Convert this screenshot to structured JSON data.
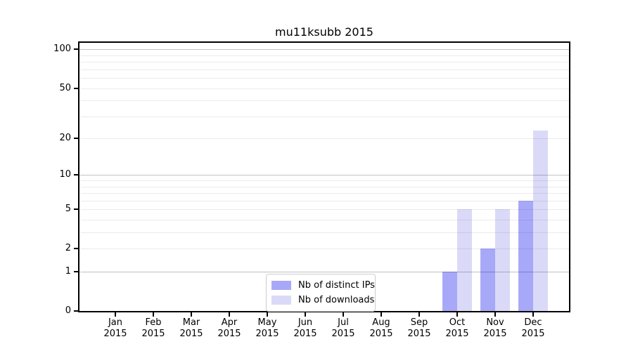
{
  "title": "mu11ksubb 2015",
  "chart_data": {
    "type": "bar",
    "title": "mu11ksubb 2015",
    "categories": [
      "Jan",
      "Feb",
      "Mar",
      "Apr",
      "May",
      "Jun",
      "Jul",
      "Aug",
      "Sep",
      "Oct",
      "Nov",
      "Dec"
    ],
    "x_year": "2015",
    "series": [
      {
        "name": "Nb of distinct IPs",
        "color": "#a8a8f8",
        "values": [
          0,
          0,
          0,
          0,
          0,
          0,
          0,
          0,
          0,
          1,
          2,
          6
        ]
      },
      {
        "name": "Nb of downloads",
        "color": "#dadaf8",
        "values": [
          0,
          0,
          0,
          0,
          0,
          0,
          0,
          0,
          0,
          5,
          5,
          23
        ]
      }
    ],
    "yscale": "log1p",
    "ylim": [
      0,
      112.4
    ],
    "yticks": [
      0,
      1,
      2,
      5,
      10,
      20,
      50,
      100
    ],
    "grid_major_ticks": [
      1,
      10,
      100
    ],
    "grid_minor_ticks": [
      2,
      3,
      4,
      5,
      6,
      7,
      8,
      9,
      20,
      30,
      40,
      50,
      60,
      70,
      80,
      90
    ],
    "legend": {
      "position": "lower center",
      "labels": [
        "Nb of distinct IPs",
        "Nb of downloads"
      ]
    },
    "colors": {
      "bar_distinct_ips": "#a8a8f8",
      "bar_downloads": "#dadaf8",
      "grid_major": "rgba(0,0,0,0.24)",
      "grid_minor": "rgba(0,0,0,0.08)",
      "axis": "#000000",
      "text": "#000000",
      "legend_border": "#cccccc"
    }
  }
}
